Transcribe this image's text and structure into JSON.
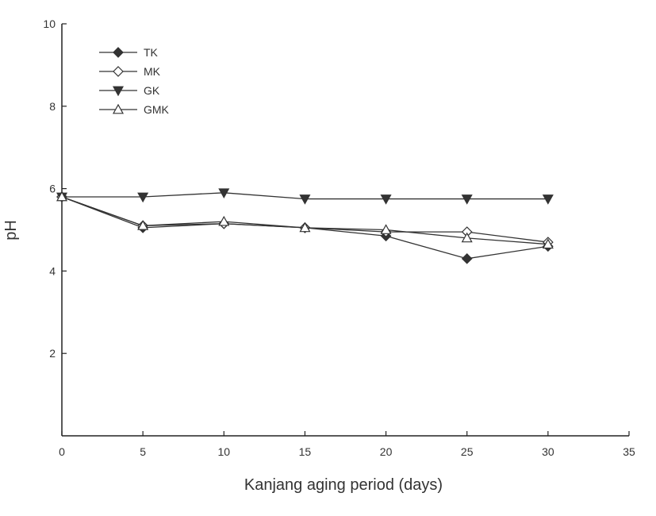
{
  "chart_data": {
    "type": "line",
    "title": "",
    "xlabel": "Kanjang aging period (days)",
    "ylabel": "pH",
    "xlim": [
      0,
      35
    ],
    "ylim": [
      0,
      10
    ],
    "xticks": [
      0,
      5,
      10,
      15,
      20,
      25,
      30,
      35
    ],
    "yticks": [
      2,
      4,
      6,
      8,
      10
    ],
    "xtick_labels": [
      "0",
      "5",
      "10",
      "15",
      "20",
      "25",
      "30",
      "35"
    ],
    "ytick_labels": [
      "2",
      "4",
      "6",
      "8",
      "10"
    ],
    "grid": false,
    "legend_position": "top-left",
    "x": [
      0,
      5,
      10,
      15,
      20,
      25,
      30
    ],
    "series": [
      {
        "name": "TK",
        "marker": "filled-diamond",
        "values": [
          5.8,
          5.05,
          5.15,
          5.05,
          4.85,
          4.3,
          4.6
        ]
      },
      {
        "name": "MK",
        "marker": "open-diamond",
        "values": [
          5.8,
          5.1,
          5.15,
          5.05,
          4.95,
          4.95,
          4.7
        ]
      },
      {
        "name": "GK",
        "marker": "filled-triangle-down",
        "values": [
          5.8,
          5.8,
          5.9,
          5.75,
          5.75,
          5.75,
          5.75
        ]
      },
      {
        "name": "GMK",
        "marker": "open-triangle-up",
        "values": [
          5.8,
          5.1,
          5.2,
          5.05,
          5.0,
          4.8,
          4.65
        ]
      }
    ],
    "colors": {
      "line": "#333333",
      "axis": "#222222",
      "background": "#ffffff"
    }
  }
}
